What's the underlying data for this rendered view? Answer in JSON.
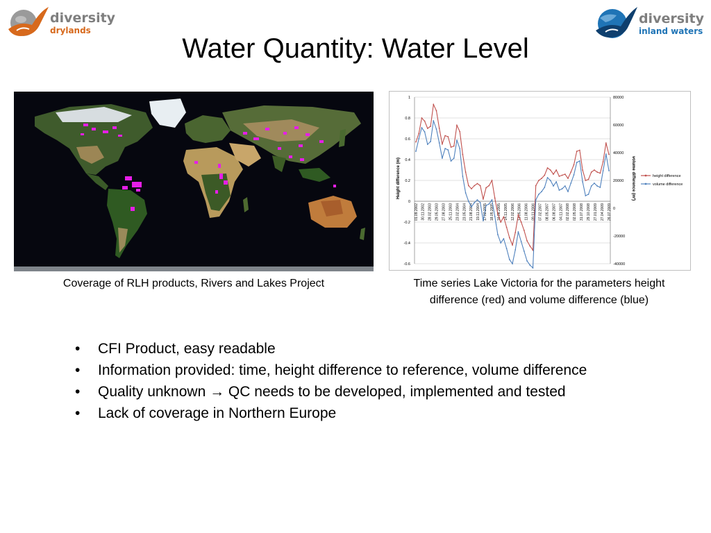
{
  "logos": {
    "left": {
      "line1": "diversity",
      "line2": "drylands",
      "color1": "#7f7f7f",
      "color2": "#d7691c"
    },
    "right": {
      "line1": "diversity",
      "line2": "inland waters",
      "color1": "#7f7f7f",
      "color2": "#1f74b6"
    }
  },
  "slide": {
    "title": "Water Quantity: Water Level"
  },
  "map": {
    "caption": "Coverage of RLH products, Rivers and Lakes Project",
    "highlight_color": "#e61ee8"
  },
  "chart": {
    "caption": "Time series Lake Victoria for the parameters height difference (red) and volume difference (blue)"
  },
  "bullets": [
    {
      "text": "CFI Product, easy readable"
    },
    {
      "text": "Information provided: time, height difference to reference, volume difference"
    },
    {
      "pre": "Quality unknown ",
      "arrow": "→",
      "post": " QC needs to be developed, implemented and tested"
    },
    {
      "text": "Lack of coverage in Northern Europe"
    }
  ],
  "chart_data": {
    "type": "line",
    "title": "",
    "ylabel": "Height difference (m)",
    "y2label": "volume difference (m³)",
    "ylim": [
      -0.6,
      1
    ],
    "yticks": [
      -0.6,
      -0.4,
      -0.2,
      0,
      0.2,
      0.4,
      0.6,
      0.8,
      1
    ],
    "y2lim": [
      -40000,
      80000
    ],
    "y2ticks": [
      -40000,
      -20000,
      0,
      20000,
      40000,
      60000,
      80000
    ],
    "legend_position": "right",
    "x_tick_labels": [
      "01.09.2002",
      "30.11.2002",
      "28.02.2003",
      "29.05.2003",
      "27.08.2003",
      "25.11.2003",
      "23.02.2004",
      "23.05.2004",
      "21.08.2004",
      "19.11.2004",
      "17.02.2005",
      "18.05.2005",
      "16.08.2005",
      "14.11.2005",
      "12.02.2006",
      "13.05.2006",
      "11.08.2006",
      "09.11.2006",
      "07.02.2007",
      "08.05.2007",
      "06.08.2007",
      "04.11.2007",
      "02.02.2008",
      "02.05.2008",
      "31.07.2008",
      "29.10.2008",
      "27.01.2009",
      "27.04.2009",
      "26.07.2009"
    ],
    "series": [
      {
        "name": "height difference",
        "color": "#c0504d",
        "axis": "left",
        "values": [
          0.57,
          0.65,
          0.8,
          0.77,
          0.7,
          0.72,
          0.93,
          0.87,
          0.7,
          0.55,
          0.63,
          0.62,
          0.52,
          0.53,
          0.73,
          0.67,
          0.45,
          0.28,
          0.15,
          0.12,
          0.15,
          0.17,
          0.15,
          0.02,
          0.13,
          0.15,
          0.2,
          0.03,
          -0.12,
          -0.2,
          -0.15,
          -0.25,
          -0.35,
          -0.42,
          -0.3,
          -0.13,
          -0.2,
          -0.28,
          -0.38,
          -0.43,
          -0.47,
          0.15,
          0.2,
          0.22,
          0.25,
          0.32,
          0.3,
          0.26,
          0.3,
          0.24,
          0.25,
          0.26,
          0.22,
          0.28,
          0.35,
          0.48,
          0.49,
          0.3,
          0.2,
          0.21,
          0.28,
          0.3,
          0.28,
          0.27,
          0.38,
          0.56,
          0.45
        ]
      },
      {
        "name": "volume difference",
        "color": "#4f81bd",
        "axis": "right",
        "values": [
          41000,
          50000,
          58000,
          55000,
          46000,
          48000,
          63000,
          57000,
          47000,
          36000,
          43000,
          42000,
          34000,
          36000,
          49000,
          43000,
          23000,
          11000,
          5000,
          1000,
          4000,
          6000,
          4000,
          -9000,
          2000,
          3000,
          6000,
          -6000,
          -19000,
          -25000,
          -22000,
          -29000,
          -37000,
          -40000,
          -30000,
          -17000,
          -24000,
          -31000,
          -38000,
          -41000,
          -43000,
          6000,
          10000,
          12000,
          15000,
          22000,
          20000,
          16000,
          19000,
          13000,
          14000,
          16000,
          12000,
          18000,
          24000,
          33000,
          34000,
          19000,
          9000,
          10000,
          16000,
          18000,
          16000,
          15000,
          27000,
          39000,
          27000
        ]
      }
    ]
  }
}
